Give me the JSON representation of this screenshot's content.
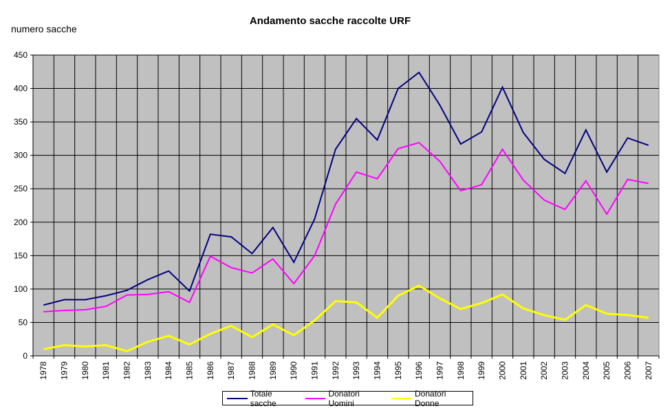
{
  "chart_data": {
    "type": "line",
    "title": "Andamento sacche raccolte URF",
    "xlabel": "",
    "ylabel": "numero sacche",
    "ylim": [
      0,
      450
    ],
    "yticks": [
      0,
      50,
      100,
      150,
      200,
      250,
      300,
      350,
      400,
      450
    ],
    "grid": true,
    "legend": "bottom",
    "plot_background": "#c0c0c0",
    "categories": [
      "1978",
      "1979",
      "1980",
      "1981",
      "1982",
      "1983",
      "1984",
      "1985",
      "1986",
      "1987",
      "1988",
      "1989",
      "1990",
      "1991",
      "1992",
      "1993",
      "1994",
      "1995",
      "1996",
      "1997",
      "1998",
      "1999",
      "2000",
      "2001",
      "2002",
      "2003",
      "2004",
      "2005",
      "2006",
      "2007"
    ],
    "series": [
      {
        "name": "Totale sacche",
        "color": "#000080",
        "values": [
          76,
          84,
          84,
          90,
          98,
          114,
          127,
          97,
          182,
          178,
          153,
          192,
          140,
          205,
          309,
          355,
          323,
          400,
          424,
          375,
          317,
          335,
          402,
          334,
          294,
          273,
          338,
          275,
          326,
          315
        ]
      },
      {
        "name": "Donatori Uomini",
        "color": "#ff00ff",
        "values": [
          66,
          68,
          69,
          74,
          91,
          92,
          96,
          80,
          149,
          132,
          124,
          145,
          108,
          150,
          227,
          275,
          265,
          310,
          319,
          291,
          247,
          256,
          309,
          263,
          233,
          219,
          262,
          212,
          264,
          258
        ]
      },
      {
        "name": "Donatori Donne",
        "color": "#ffff00",
        "values": [
          10,
          16,
          14,
          16,
          7,
          21,
          30,
          17,
          33,
          45,
          28,
          47,
          31,
          53,
          82,
          80,
          57,
          90,
          105,
          86,
          70,
          79,
          92,
          71,
          61,
          54,
          76,
          63,
          61,
          57
        ]
      }
    ]
  }
}
